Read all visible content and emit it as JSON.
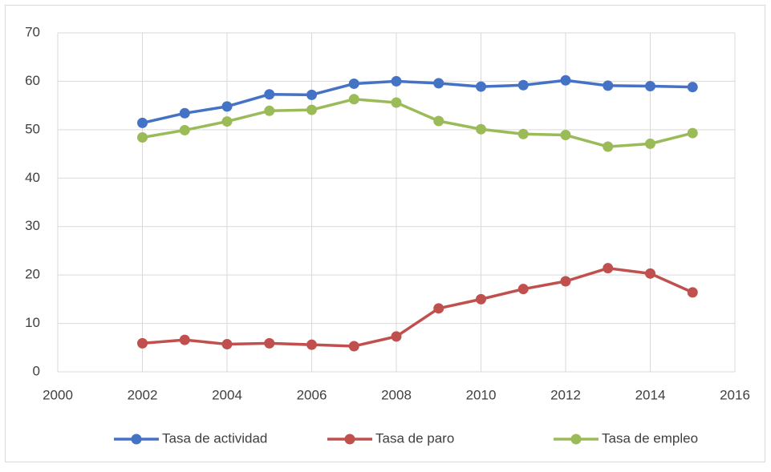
{
  "chart_data": {
    "type": "line",
    "x": [
      2002,
      2003,
      2004,
      2005,
      2006,
      2007,
      2008,
      2009,
      2010,
      2011,
      2012,
      2013,
      2014,
      2015
    ],
    "series": [
      {
        "name": "Tasa de actividad",
        "color": "#4472c4",
        "values": [
          51.4,
          53.4,
          54.8,
          57.3,
          57.2,
          59.5,
          60.0,
          59.6,
          58.9,
          59.2,
          60.2,
          59.1,
          59.0,
          58.8
        ]
      },
      {
        "name": "Tasa de paro",
        "color": "#c0504d",
        "values": [
          5.9,
          6.6,
          5.7,
          5.9,
          5.6,
          5.3,
          7.3,
          13.1,
          15.0,
          17.1,
          18.7,
          21.4,
          20.3,
          16.4
        ]
      },
      {
        "name": "Tasa de empleo",
        "color": "#9bbb59",
        "values": [
          48.4,
          49.9,
          51.7,
          53.9,
          54.1,
          56.3,
          55.6,
          51.8,
          50.1,
          49.1,
          48.9,
          46.5,
          47.1,
          49.3
        ]
      }
    ],
    "xlim": [
      2000,
      2016
    ],
    "xticks": [
      2000,
      2002,
      2004,
      2006,
      2008,
      2010,
      2012,
      2014,
      2016
    ],
    "ylim": [
      0,
      70
    ],
    "yticks": [
      0,
      10,
      20,
      30,
      40,
      50,
      60,
      70
    ],
    "grid": true,
    "legend": "bottom"
  }
}
